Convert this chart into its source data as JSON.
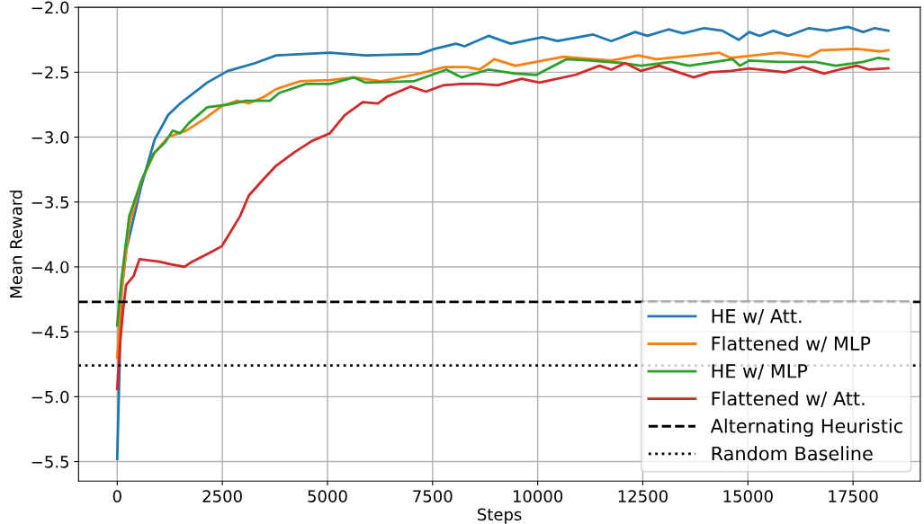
{
  "chart_data": {
    "type": "line",
    "xlabel": "Steps",
    "ylabel": "Mean Reward",
    "xlim": [
      -920,
      19100
    ],
    "ylim": [
      -5.65,
      -2.0
    ],
    "xticks": [
      0,
      2500,
      5000,
      7500,
      10000,
      12500,
      15000,
      17500
    ],
    "yticks": [
      {
        "value": -5.5,
        "label": "−5.5"
      },
      {
        "value": -5.0,
        "label": "−5.0"
      },
      {
        "value": -4.5,
        "label": "−4.5"
      },
      {
        "value": -4.0,
        "label": "−4.0"
      },
      {
        "value": -3.5,
        "label": "−3.5"
      },
      {
        "value": -3.0,
        "label": "−3.0"
      },
      {
        "value": -2.5,
        "label": "−2.5"
      },
      {
        "value": -2.0,
        "label": "−2.0"
      }
    ],
    "grid": true,
    "legend": "bottom right",
    "line_style": "solid",
    "marker": "none",
    "series": [
      {
        "name": "HE w/ Att.",
        "color": "#1f77b4",
        "x": [
          0,
          100,
          214,
          570,
          890,
          1210,
          1500,
          2140,
          2630,
          3280,
          3780,
          5060,
          5910,
          7190,
          7550,
          8050,
          8260,
          8830,
          9360,
          10110,
          10470,
          11320,
          11750,
          12320,
          12610,
          13110,
          13460,
          13960,
          14390,
          14780,
          15030,
          15280,
          15600,
          15950,
          16450,
          16880,
          17380,
          17740,
          18020,
          18340
        ],
        "values": [
          -5.48,
          -4.2,
          -3.87,
          -3.38,
          -3.02,
          -2.83,
          -2.74,
          -2.58,
          -2.49,
          -2.43,
          -2.37,
          -2.35,
          -2.37,
          -2.36,
          -2.32,
          -2.28,
          -2.3,
          -2.22,
          -2.28,
          -2.23,
          -2.26,
          -2.21,
          -2.26,
          -2.19,
          -2.22,
          -2.17,
          -2.2,
          -2.16,
          -2.18,
          -2.25,
          -2.19,
          -2.22,
          -2.18,
          -2.22,
          -2.16,
          -2.18,
          -2.15,
          -2.19,
          -2.16,
          -2.18
        ]
      },
      {
        "name": "Flattened w/ MLP",
        "color": "#ff7f0e",
        "x": [
          0,
          100,
          285,
          570,
          890,
          1210,
          1640,
          2070,
          2490,
          2850,
          3130,
          3490,
          3780,
          4340,
          5060,
          5630,
          6270,
          7050,
          7800,
          8330,
          8620,
          8970,
          9470,
          10610,
          11750,
          12390,
          12820,
          14320,
          14600,
          15740,
          16450,
          16740,
          17590,
          18160,
          18340
        ],
        "values": [
          -4.7,
          -4.2,
          -3.68,
          -3.34,
          -3.12,
          -3.0,
          -2.95,
          -2.86,
          -2.76,
          -2.72,
          -2.74,
          -2.69,
          -2.63,
          -2.57,
          -2.56,
          -2.54,
          -2.57,
          -2.52,
          -2.46,
          -2.46,
          -2.48,
          -2.4,
          -2.45,
          -2.38,
          -2.41,
          -2.37,
          -2.4,
          -2.35,
          -2.39,
          -2.35,
          -2.38,
          -2.33,
          -2.32,
          -2.34,
          -2.33
        ]
      },
      {
        "name": "HE w/ MLP",
        "color": "#2ca02c",
        "x": [
          0,
          100,
          285,
          570,
          855,
          1140,
          1320,
          1500,
          1710,
          2140,
          2630,
          3060,
          3630,
          3850,
          4490,
          5060,
          5630,
          5910,
          7050,
          7830,
          8190,
          8830,
          9470,
          9970,
          10680,
          11250,
          12040,
          12460,
          13180,
          13600,
          14640,
          14810,
          15030,
          15740,
          16600,
          17090,
          17740,
          18090,
          18340
        ],
        "values": [
          -4.45,
          -4.1,
          -3.61,
          -3.34,
          -3.13,
          -3.04,
          -2.95,
          -2.97,
          -2.89,
          -2.77,
          -2.75,
          -2.72,
          -2.72,
          -2.66,
          -2.59,
          -2.59,
          -2.54,
          -2.58,
          -2.57,
          -2.48,
          -2.54,
          -2.48,
          -2.51,
          -2.52,
          -2.4,
          -2.41,
          -2.43,
          -2.45,
          -2.42,
          -2.45,
          -2.4,
          -2.45,
          -2.41,
          -2.42,
          -2.42,
          -2.45,
          -2.42,
          -2.39,
          -2.4
        ]
      },
      {
        "name": "Flattened w/ Att.",
        "color": "#d62728",
        "x": [
          0,
          70,
          140,
          210,
          390,
          530,
          1000,
          1280,
          1600,
          1780,
          2210,
          2490,
          2920,
          3130,
          3490,
          3780,
          4200,
          4630,
          5060,
          5410,
          5840,
          6200,
          6410,
          6980,
          7340,
          7760,
          8190,
          8620,
          9050,
          9620,
          10040,
          10900,
          11470,
          11750,
          12080,
          12460,
          12890,
          13710,
          14100,
          14600,
          15030,
          15880,
          16310,
          16810,
          17170,
          17590,
          17880,
          18340
        ],
        "values": [
          -4.94,
          -4.58,
          -4.33,
          -4.14,
          -4.07,
          -3.94,
          -3.96,
          -3.98,
          -4.0,
          -3.96,
          -3.89,
          -3.84,
          -3.61,
          -3.45,
          -3.32,
          -3.22,
          -3.12,
          -3.03,
          -2.97,
          -2.83,
          -2.73,
          -2.74,
          -2.69,
          -2.61,
          -2.65,
          -2.6,
          -2.59,
          -2.59,
          -2.6,
          -2.55,
          -2.58,
          -2.52,
          -2.45,
          -2.48,
          -2.43,
          -2.49,
          -2.45,
          -2.54,
          -2.5,
          -2.49,
          -2.47,
          -2.5,
          -2.46,
          -2.51,
          -2.48,
          -2.45,
          -2.48,
          -2.47
        ]
      }
    ],
    "ref_lines": [
      {
        "axis": "y",
        "value": -4.27,
        "label": "Alternating Heuristic",
        "color": "#000000",
        "line_style": "dashed"
      },
      {
        "axis": "y",
        "value": -4.76,
        "label": "Random Baseline",
        "color": "#000000",
        "line_style": "dotted"
      }
    ]
  }
}
